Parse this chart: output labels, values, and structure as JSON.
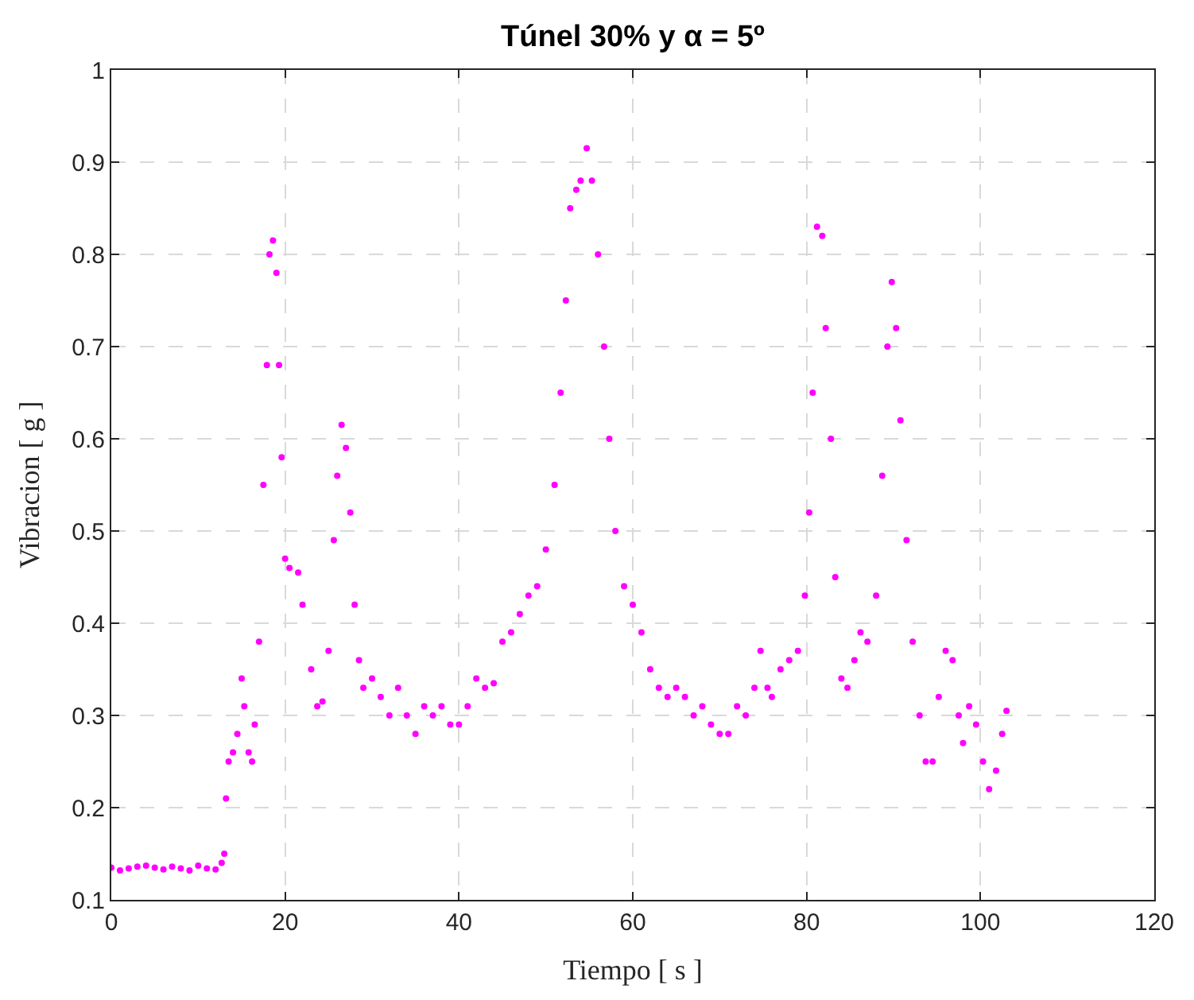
{
  "chart_data": {
    "type": "scatter",
    "title": "Túnel 30% y α = 5º",
    "xlabel": "Tiempo [ s ]",
    "ylabel": "Vibracion [ g ]",
    "xlim": [
      0,
      120
    ],
    "xticks": [
      0,
      20,
      40,
      60,
      80,
      100,
      120
    ],
    "ylim": [
      0.1,
      1
    ],
    "yticks": [
      0.1,
      0.2,
      0.3,
      0.4,
      0.5,
      0.6,
      0.7,
      0.8,
      0.9,
      1
    ],
    "grid": true,
    "marker": "circle",
    "series": [
      {
        "color": "#ff00ff",
        "x": [
          0,
          1,
          2,
          3,
          4,
          5,
          6,
          7,
          8,
          9,
          10,
          11,
          12,
          12.7,
          13,
          13.2,
          13.5,
          14,
          14.5,
          15,
          15.3,
          15.8,
          16.2,
          16.5,
          17,
          17.5,
          17.9,
          18.2,
          18.6,
          19,
          19.3,
          19.6,
          20,
          20.5,
          21.5,
          22,
          23,
          23.7,
          24.3,
          25,
          25.6,
          26,
          26.5,
          27,
          27.5,
          28,
          28.5,
          29,
          30,
          31,
          32,
          33,
          34,
          35,
          36,
          37,
          38,
          39,
          40,
          41,
          42,
          43,
          44,
          45,
          46,
          47,
          48,
          49,
          50,
          51,
          51.7,
          52.3,
          52.8,
          53.5,
          54,
          54.7,
          55.3,
          56,
          56.7,
          57.3,
          58,
          59,
          60,
          61,
          62,
          63,
          64,
          65,
          66,
          67,
          68,
          69,
          70,
          71,
          72,
          73,
          74,
          74.7,
          75.5,
          76,
          77,
          78,
          79,
          79.8,
          80.3,
          80.7,
          81.2,
          81.8,
          82.2,
          82.8,
          83.3,
          84,
          84.7,
          85.5,
          86.2,
          87,
          88,
          88.7,
          89.3,
          89.8,
          90.3,
          90.8,
          91.5,
          92.2,
          93,
          93.7,
          94.5,
          95.2,
          96,
          96.8,
          97.5,
          98,
          98.7,
          99.5,
          100.3,
          101,
          101.8,
          102.5,
          103
        ],
        "values": [
          0.135,
          0.132,
          0.134,
          0.136,
          0.137,
          0.135,
          0.133,
          0.136,
          0.134,
          0.132,
          0.137,
          0.134,
          0.133,
          0.14,
          0.15,
          0.21,
          0.25,
          0.26,
          0.28,
          0.34,
          0.31,
          0.26,
          0.25,
          0.29,
          0.38,
          0.55,
          0.68,
          0.8,
          0.815,
          0.78,
          0.68,
          0.58,
          0.47,
          0.46,
          0.455,
          0.42,
          0.35,
          0.31,
          0.315,
          0.37,
          0.49,
          0.56,
          0.615,
          0.59,
          0.52,
          0.42,
          0.36,
          0.33,
          0.34,
          0.32,
          0.3,
          0.33,
          0.3,
          0.28,
          0.31,
          0.3,
          0.31,
          0.29,
          0.29,
          0.31,
          0.34,
          0.33,
          0.335,
          0.38,
          0.39,
          0.41,
          0.43,
          0.44,
          0.48,
          0.55,
          0.65,
          0.75,
          0.85,
          0.87,
          0.88,
          0.915,
          0.88,
          0.8,
          0.7,
          0.6,
          0.5,
          0.44,
          0.42,
          0.39,
          0.35,
          0.33,
          0.32,
          0.33,
          0.32,
          0.3,
          0.31,
          0.29,
          0.28,
          0.28,
          0.31,
          0.3,
          0.33,
          0.37,
          0.33,
          0.32,
          0.35,
          0.36,
          0.37,
          0.43,
          0.52,
          0.65,
          0.83,
          0.82,
          0.72,
          0.6,
          0.45,
          0.34,
          0.33,
          0.36,
          0.39,
          0.38,
          0.43,
          0.56,
          0.7,
          0.77,
          0.72,
          0.62,
          0.49,
          0.38,
          0.3,
          0.25,
          0.25,
          0.32,
          0.37,
          0.36,
          0.3,
          0.27,
          0.31,
          0.29,
          0.25,
          0.22,
          0.24,
          0.28,
          0.305
        ]
      }
    ]
  }
}
